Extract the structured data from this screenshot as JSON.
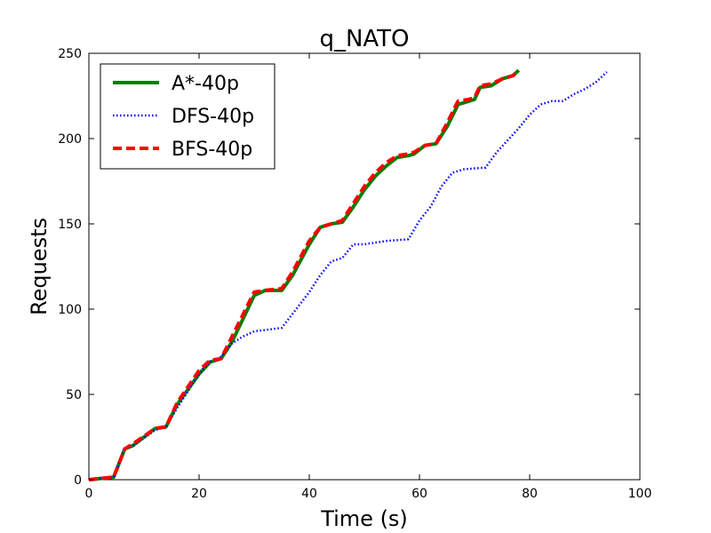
{
  "chart_data": {
    "type": "line",
    "title": "q_NATO",
    "xlabel": "Time (s)",
    "ylabel": "Requests",
    "xlim": [
      0,
      100
    ],
    "ylim": [
      0,
      250
    ],
    "x_ticks": [
      "0",
      "20",
      "40",
      "60",
      "80",
      "100"
    ],
    "y_ticks": [
      "0",
      "50",
      "100",
      "150",
      "200",
      "250"
    ],
    "grid": false,
    "legend_position": "top-left",
    "series": [
      {
        "name": "A*-40p",
        "color": "#008000",
        "style": "solid",
        "points": [
          [
            0,
            0
          ],
          [
            4.5,
            1.5
          ],
          [
            6.5,
            18
          ],
          [
            8,
            20
          ],
          [
            12,
            30
          ],
          [
            14,
            31
          ],
          [
            16,
            44
          ],
          [
            20,
            62
          ],
          [
            22,
            69
          ],
          [
            24,
            71
          ],
          [
            26,
            81
          ],
          [
            30,
            108
          ],
          [
            32,
            111
          ],
          [
            35,
            111
          ],
          [
            37,
            120
          ],
          [
            40,
            138
          ],
          [
            42,
            148
          ],
          [
            44,
            150
          ],
          [
            46,
            151
          ],
          [
            48,
            160
          ],
          [
            50,
            170
          ],
          [
            52,
            178
          ],
          [
            54,
            184
          ],
          [
            56,
            189
          ],
          [
            58,
            190
          ],
          [
            59,
            191
          ],
          [
            61,
            196
          ],
          [
            63,
            197
          ],
          [
            65,
            207
          ],
          [
            67,
            220
          ],
          [
            69,
            222
          ],
          [
            70,
            223
          ],
          [
            71,
            230
          ],
          [
            73,
            231
          ],
          [
            75,
            235
          ],
          [
            77,
            237
          ],
          [
            78,
            240
          ]
        ]
      },
      {
        "name": "DFS-40p",
        "color": "#0000ff",
        "style": "dotted",
        "points": [
          [
            0,
            0
          ],
          [
            4.5,
            1.5
          ],
          [
            6.5,
            18
          ],
          [
            8,
            20
          ],
          [
            12,
            29
          ],
          [
            14,
            31
          ],
          [
            16,
            42
          ],
          [
            20,
            62
          ],
          [
            22,
            69
          ],
          [
            24,
            72
          ],
          [
            26,
            80
          ],
          [
            28,
            84
          ],
          [
            30,
            87
          ],
          [
            35,
            89
          ],
          [
            40,
            110
          ],
          [
            42,
            120
          ],
          [
            44,
            128
          ],
          [
            46,
            130
          ],
          [
            48,
            138
          ],
          [
            50,
            138
          ],
          [
            54,
            140
          ],
          [
            58,
            141
          ],
          [
            60,
            152
          ],
          [
            62,
            160
          ],
          [
            64,
            172
          ],
          [
            66,
            180
          ],
          [
            68,
            182
          ],
          [
            72,
            183
          ],
          [
            74,
            192
          ],
          [
            78,
            206
          ],
          [
            80,
            214
          ],
          [
            82,
            220
          ],
          [
            84,
            222
          ],
          [
            86,
            222
          ],
          [
            88,
            226
          ],
          [
            90,
            229
          ],
          [
            92,
            233
          ],
          [
            94,
            239
          ]
        ]
      },
      {
        "name": "BFS-40p",
        "color": "#ff0000",
        "style": "dashed",
        "points": [
          [
            0,
            0
          ],
          [
            4.5,
            1.5
          ],
          [
            6.5,
            18
          ],
          [
            8,
            21
          ],
          [
            12,
            30
          ],
          [
            14,
            31
          ],
          [
            16,
            45
          ],
          [
            20,
            64
          ],
          [
            22,
            70
          ],
          [
            24,
            71
          ],
          [
            26,
            84
          ],
          [
            30,
            110
          ],
          [
            32,
            111
          ],
          [
            35,
            112
          ],
          [
            37,
            122
          ],
          [
            40,
            140
          ],
          [
            42,
            148
          ],
          [
            44,
            150
          ],
          [
            46,
            152
          ],
          [
            48,
            162
          ],
          [
            50,
            172
          ],
          [
            52,
            180
          ],
          [
            54,
            186
          ],
          [
            56,
            190
          ],
          [
            58,
            191
          ],
          [
            59,
            192
          ],
          [
            61,
            196
          ],
          [
            63,
            197
          ],
          [
            65,
            209
          ],
          [
            67,
            222
          ],
          [
            69,
            223
          ],
          [
            70,
            224
          ],
          [
            71,
            231
          ],
          [
            73,
            232
          ],
          [
            75,
            235
          ],
          [
            77,
            237
          ],
          [
            78,
            240
          ]
        ]
      }
    ]
  }
}
